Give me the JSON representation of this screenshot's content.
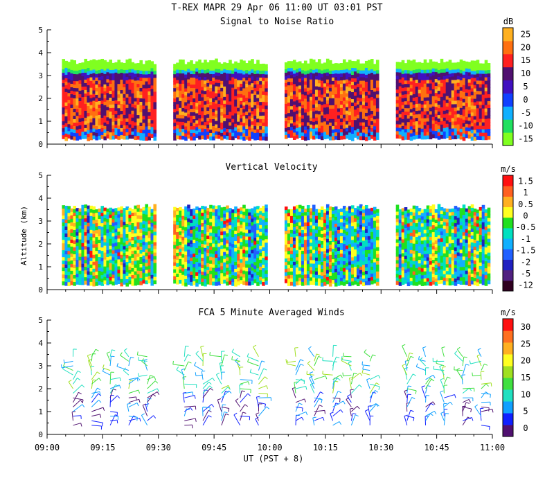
{
  "header": {
    "title": "T-REX  MAPR 29 Apr 06  11:00 UT  03:01  PST"
  },
  "colors": {
    "snr": [
      "#80ff20",
      "#20e060",
      "#10b0ff",
      "#1040ff",
      "#4010c0",
      "#501070",
      "#ff2020",
      "#ff7010",
      "#ffb020"
    ],
    "vv": [
      "#300020",
      "#502080",
      "#2020c0",
      "#2060ff",
      "#10b0ff",
      "#00e0c0",
      "#20e020",
      "#ffff20",
      "#ffb020",
      "#ff6020",
      "#ff1010"
    ],
    "wind": [
      "#501070",
      "#1020ff",
      "#10a0ff",
      "#20e0c0",
      "#40e040",
      "#a0e020",
      "#ffff20",
      "#ffb020",
      "#ff7020",
      "#ff1010"
    ]
  },
  "time_axis": {
    "label": "UT  (PST + 8)",
    "ticks": [
      "09:00",
      "09:15",
      "09:30",
      "09:45",
      "10:00",
      "10:15",
      "10:30",
      "10:45",
      "11:00"
    ],
    "range_minutes": [
      0,
      120
    ]
  },
  "chart_data": [
    {
      "type": "heatmap",
      "title": "Signal to Noise Ratio",
      "ylabel": "",
      "ylim": [
        0,
        5
      ],
      "yticks": [
        "0",
        "1",
        "2",
        "3",
        "4",
        "5"
      ],
      "xlim_minutes": [
        0,
        120
      ],
      "colorbar": {
        "unit": "dB",
        "labels": [
          "-15",
          "-10",
          "-5",
          "0",
          "5",
          "10",
          "15",
          "20",
          "25"
        ]
      },
      "data_segments_minutes": [
        [
          4,
          29
        ],
        [
          34,
          59
        ],
        [
          64,
          89
        ],
        [
          94,
          119
        ]
      ],
      "echo_top_km": 3.5,
      "echo_base_km": 0.3
    },
    {
      "type": "heatmap",
      "title": "Vertical Velocity",
      "ylabel": "Altitude (km)",
      "ylim": [
        0,
        5
      ],
      "yticks": [
        "0",
        "1",
        "2",
        "3",
        "4",
        "5"
      ],
      "xlim_minutes": [
        0,
        120
      ],
      "colorbar": {
        "unit": "m/s",
        "labels": [
          "-12",
          "-5",
          "-2",
          "-1.5",
          "-1",
          "-0.5",
          "0",
          "0.5",
          "1",
          "1.5"
        ]
      },
      "data_segments_minutes": [
        [
          4,
          29
        ],
        [
          34,
          59
        ],
        [
          64,
          89
        ],
        [
          94,
          119
        ]
      ],
      "echo_top_km": 3.5,
      "echo_base_km": 0.3
    },
    {
      "type": "scatter",
      "title": "FCA 5 Minute Averaged Winds",
      "ylabel": "",
      "ylim": [
        0,
        5
      ],
      "yticks": [
        "0",
        "1",
        "2",
        "3",
        "4",
        "5"
      ],
      "xlim_minutes": [
        0,
        120
      ],
      "colorbar": {
        "unit": "m/s",
        "labels": [
          "0",
          "5",
          "10",
          "15",
          "20",
          "25",
          "30"
        ]
      },
      "profile_times_minutes": [
        7,
        12,
        17,
        22,
        27,
        37,
        42,
        47,
        52,
        57,
        67,
        72,
        77,
        82,
        87,
        97,
        102,
        107,
        112,
        117
      ],
      "altitude_range_km": [
        0.4,
        3.6
      ]
    }
  ]
}
